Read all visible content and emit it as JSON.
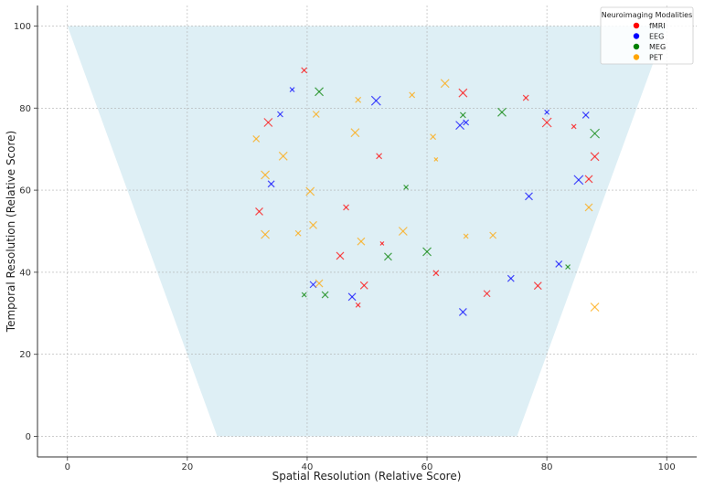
{
  "chart_data": {
    "type": "scatter",
    "xlabel": "Spatial Resolution (Relative Score)",
    "ylabel": "Temporal Resolution (Relative Score)",
    "xlim": [
      -5,
      105
    ],
    "ylim": [
      -5,
      105
    ],
    "xticks": [
      0,
      20,
      40,
      60,
      80,
      100
    ],
    "yticks": [
      0,
      20,
      40,
      60,
      80,
      100
    ],
    "grid": true,
    "legend": {
      "title": "Neuroimaging Modalities",
      "placement": "top-right"
    },
    "region": {
      "polygon": [
        [
          0,
          100
        ],
        [
          100,
          100
        ],
        [
          75,
          0
        ],
        [
          25,
          0
        ]
      ],
      "color": "#add8e6"
    },
    "marker": "x",
    "series": [
      {
        "name": "fMRI",
        "color": "#ff0000",
        "points": [
          [
            39.5,
            89.2,
            6
          ],
          [
            33.5,
            76.5,
            9
          ],
          [
            66,
            83.7,
            9
          ],
          [
            76.5,
            82.5,
            6
          ],
          [
            80,
            76.5,
            10
          ],
          [
            84.5,
            75.5,
            5
          ],
          [
            52,
            68.3,
            6
          ],
          [
            88,
            68.2,
            9
          ],
          [
            87,
            62.7,
            8
          ],
          [
            32,
            54.8,
            8
          ],
          [
            46.5,
            55.8,
            6
          ],
          [
            52.5,
            47,
            4
          ],
          [
            45.5,
            44,
            8
          ],
          [
            49.5,
            36.8,
            8
          ],
          [
            48.5,
            32,
            5
          ],
          [
            61.5,
            39.8,
            6
          ],
          [
            70,
            34.8,
            7
          ],
          [
            78.5,
            36.7,
            8
          ]
        ]
      },
      {
        "name": "EEG",
        "color": "#0000ff",
        "points": [
          [
            37.5,
            84.5,
            5
          ],
          [
            35.5,
            78.5,
            6
          ],
          [
            51.5,
            81.8,
            10
          ],
          [
            65.5,
            75.8,
            9
          ],
          [
            66.5,
            76.5,
            6
          ],
          [
            80,
            79,
            5
          ],
          [
            86.5,
            78.3,
            7
          ],
          [
            34,
            61.5,
            7
          ],
          [
            85.3,
            62.5,
            10
          ],
          [
            77,
            58.5,
            8
          ],
          [
            41,
            37,
            7
          ],
          [
            47.5,
            34,
            8
          ],
          [
            66,
            30.3,
            8
          ],
          [
            74,
            38.5,
            7
          ],
          [
            82,
            42,
            7
          ]
        ]
      },
      {
        "name": "MEG",
        "color": "#008000",
        "points": [
          [
            42,
            84,
            9
          ],
          [
            66,
            78.3,
            6
          ],
          [
            72.5,
            79,
            9
          ],
          [
            88,
            73.8,
            10
          ],
          [
            56.5,
            60.7,
            5
          ],
          [
            60,
            45,
            9
          ],
          [
            53.5,
            43.8,
            8
          ],
          [
            83.5,
            41.3,
            5
          ],
          [
            39.5,
            34.5,
            5
          ],
          [
            43,
            34.5,
            7
          ]
        ]
      },
      {
        "name": "PET",
        "color": "#ffa500",
        "points": [
          [
            48.5,
            82,
            6
          ],
          [
            57.5,
            83.2,
            6
          ],
          [
            63,
            86,
            9
          ],
          [
            41.5,
            78.5,
            7
          ],
          [
            31.5,
            72.5,
            7
          ],
          [
            36,
            68.3,
            9
          ],
          [
            48,
            74,
            9
          ],
          [
            61,
            73,
            6
          ],
          [
            61.5,
            67.5,
            4
          ],
          [
            33,
            63.7,
            9
          ],
          [
            40.5,
            59.7,
            9
          ],
          [
            41,
            51.5,
            8
          ],
          [
            33,
            49.2,
            9
          ],
          [
            38.5,
            49.5,
            6
          ],
          [
            49,
            47.5,
            8
          ],
          [
            56,
            50,
            9
          ],
          [
            66.5,
            48.8,
            5
          ],
          [
            71,
            49,
            7
          ],
          [
            87,
            55.8,
            8
          ],
          [
            42,
            37.3,
            8
          ],
          [
            88,
            31.5,
            9
          ]
        ]
      }
    ]
  }
}
